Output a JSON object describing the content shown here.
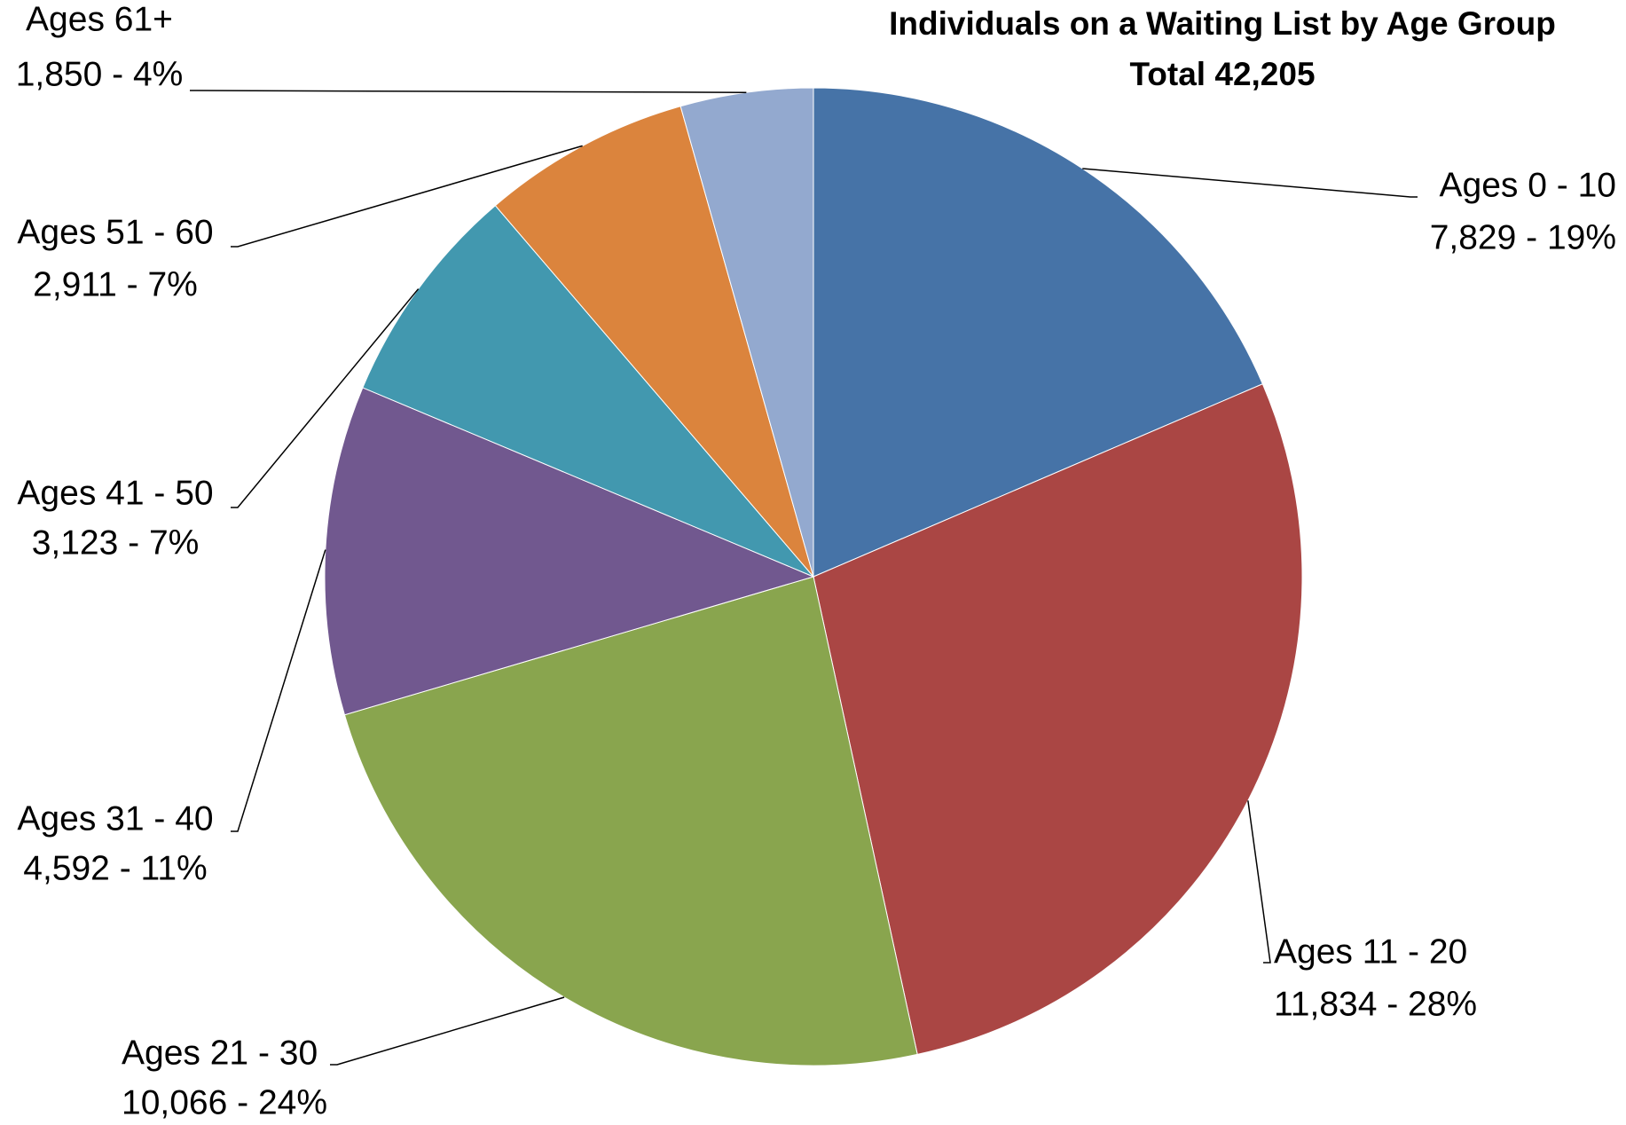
{
  "chart_data": {
    "type": "pie",
    "title": "Individuals on a Waiting List by Age Group",
    "subtitle": "Total 42,205",
    "categories": [
      "Ages 0 - 10",
      "Ages 11 - 20",
      "Ages 21 - 30",
      "Ages 31 - 40",
      "Ages 41 - 50",
      "Ages 51 - 60",
      "Ages 61+"
    ],
    "values": [
      7829,
      11834,
      10066,
      4592,
      3123,
      2911,
      1850
    ],
    "value_labels": [
      "7,829 - 19%",
      "11,834 - 28%",
      "10,066 - 24%",
      "4,592 - 11%",
      "3,123 - 7%",
      "2,911 - 7%",
      "1,850 - 4%"
    ],
    "colors": [
      "#4673a7",
      "#aa4644",
      "#89a54e",
      "#71588f",
      "#4298af",
      "#db843d",
      "#93a9cf"
    ]
  }
}
